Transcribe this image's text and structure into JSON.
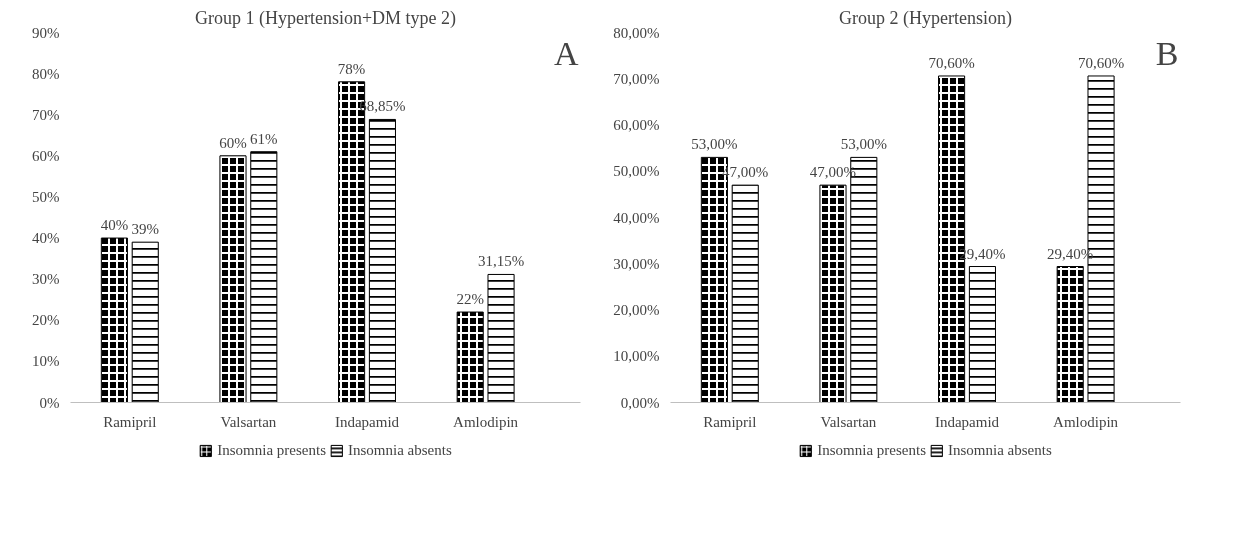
{
  "chart_data": [
    {
      "type": "bar",
      "title": "Group 1 (Hypertension+DM type 2)",
      "annotations": [
        "A"
      ],
      "categories": [
        "Ramipril",
        "Valsartan",
        "Indapamid",
        "Amlodipin"
      ],
      "series": [
        {
          "name": "Insomnia presents",
          "color": "#000000",
          "values": [
            40,
            60,
            78,
            22
          ],
          "value_labels": [
            "40%",
            "60%",
            "78%",
            "22%"
          ]
        },
        {
          "name": "Insomnia absents",
          "color": "#000000",
          "values": [
            39,
            61,
            68.85,
            31.15
          ],
          "value_labels": [
            "39%",
            "61%",
            "68,85%",
            "31,15%"
          ]
        }
      ],
      "ylim": [
        0,
        90
      ],
      "yticks": [
        {
          "value": 0,
          "label": "0%"
        },
        {
          "value": 10,
          "label": "10%"
        },
        {
          "value": 20,
          "label": "20%"
        },
        {
          "value": 30,
          "label": "30%"
        },
        {
          "value": 40,
          "label": "40%"
        },
        {
          "value": 50,
          "label": "50%"
        },
        {
          "value": 60,
          "label": "60%"
        },
        {
          "value": 70,
          "label": "70%"
        },
        {
          "value": 80,
          "label": "80%"
        },
        {
          "value": 90,
          "label": "90%"
        }
      ],
      "grid": false,
      "legend": "bottom"
    },
    {
      "type": "bar",
      "title": "Group 2 (Hypertension)",
      "annotations": [
        "B"
      ],
      "categories": [
        "Ramipril",
        "Valsartan",
        "Indapamid",
        "Amlodipin"
      ],
      "series": [
        {
          "name": "Insomnia presents",
          "color": "#000000",
          "values": [
            53,
            47,
            70.6,
            29.4
          ],
          "value_labels": [
            "53,00%",
            "47,00%",
            "70,60%",
            "29,40%"
          ]
        },
        {
          "name": "Insomnia absents",
          "color": "#000000",
          "values": [
            47,
            53,
            29.4,
            70.6
          ],
          "value_labels": [
            "47,00%",
            "53,00%",
            "29,40%",
            "70,60%"
          ]
        }
      ],
      "ylim": [
        0,
        80
      ],
      "yticks": [
        {
          "value": 0,
          "label": "0,00%"
        },
        {
          "value": 10,
          "label": "10,00%"
        },
        {
          "value": 20,
          "label": "20,00%"
        },
        {
          "value": 30,
          "label": "30,00%"
        },
        {
          "value": 40,
          "label": "40,00%"
        },
        {
          "value": 50,
          "label": "50,00%"
        },
        {
          "value": 60,
          "label": "60,00%"
        },
        {
          "value": 70,
          "label": "70,00%"
        },
        {
          "value": 80,
          "label": "80,00%"
        }
      ],
      "grid": false,
      "legend": "bottom"
    }
  ]
}
